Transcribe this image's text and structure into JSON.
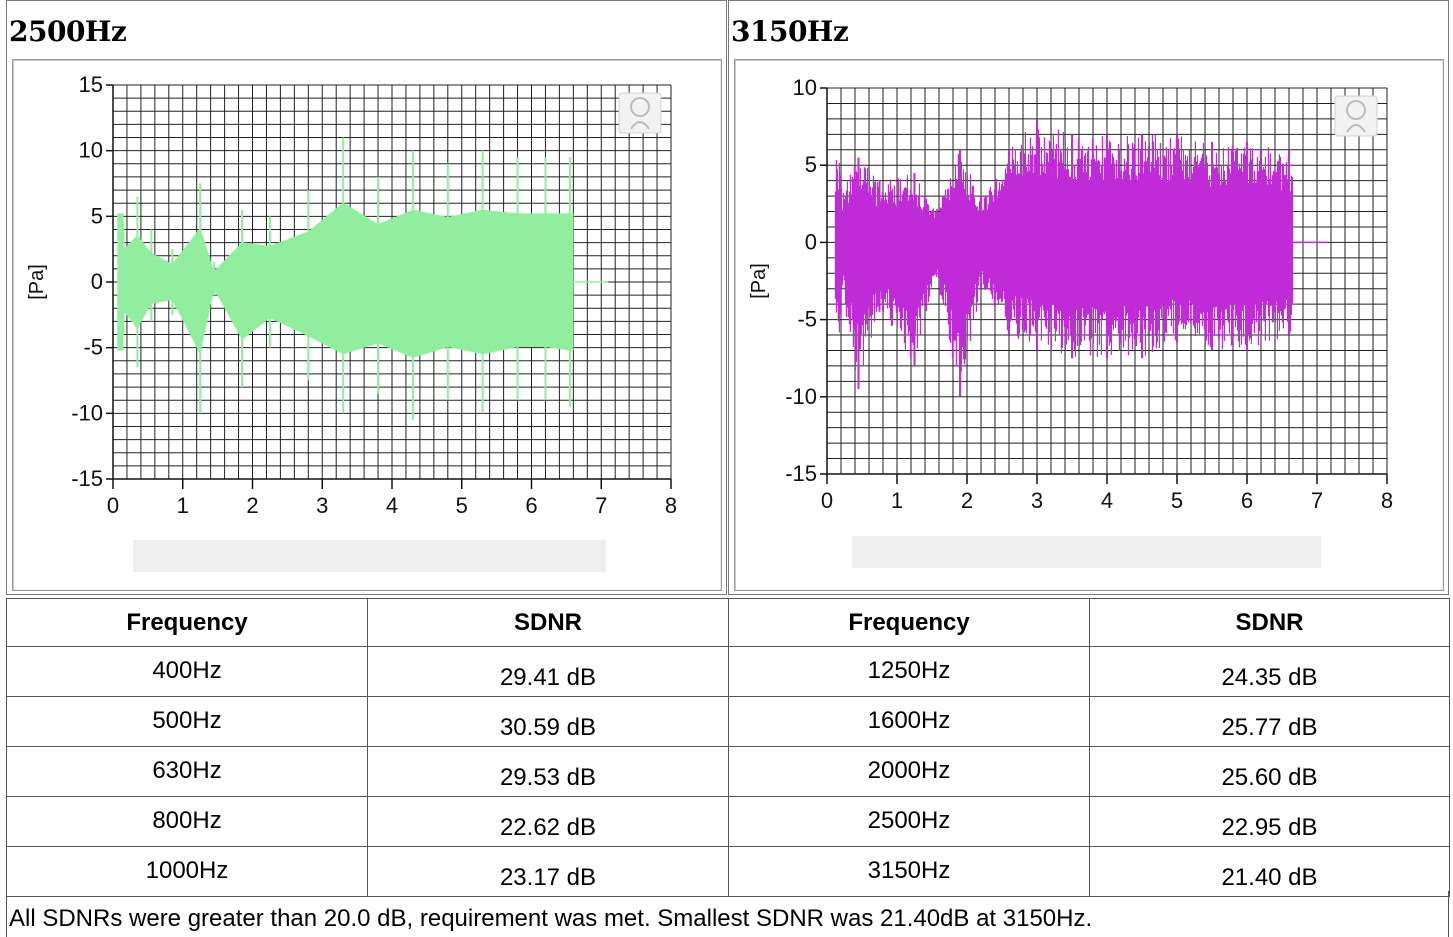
{
  "charts_meta": {
    "y_axis_label": "[Pa]"
  },
  "chart_data": [
    {
      "type": "line",
      "title": "2500Hz",
      "ylabel": "[Pa]",
      "xlabel": "",
      "xlim": [
        0,
        8
      ],
      "ylim": [
        -15,
        15
      ],
      "x_ticks": [
        "0",
        "1",
        "2",
        "3",
        "4",
        "5",
        "6",
        "7",
        "8"
      ],
      "y_ticks": [
        "15",
        "10",
        "5",
        "0",
        "-5",
        "-10",
        "-15"
      ],
      "grid": true,
      "color": "#90ee9e",
      "series": [
        {
          "envelope": [
            {
              "x": 0.15,
              "max": 4.5,
              "min": -4.0
            },
            {
              "x": 0.35,
              "max": 6.5,
              "min": -6.5
            },
            {
              "x": 0.55,
              "max": 4.0,
              "min": -3.0
            },
            {
              "x": 0.85,
              "max": 2.5,
              "min": -2.5
            },
            {
              "x": 1.25,
              "max": 7.5,
              "min": -10.0
            },
            {
              "x": 1.45,
              "max": 1.5,
              "min": -1.0
            },
            {
              "x": 1.85,
              "max": 5.5,
              "min": -8.0
            },
            {
              "x": 2.25,
              "max": 5.0,
              "min": -5.0
            },
            {
              "x": 2.8,
              "max": 7.0,
              "min": -7.5
            },
            {
              "x": 3.3,
              "max": 11.0,
              "min": -10.0
            },
            {
              "x": 3.8,
              "max": 8.0,
              "min": -8.5
            },
            {
              "x": 4.3,
              "max": 10.0,
              "min": -10.5
            },
            {
              "x": 4.8,
              "max": 9.0,
              "min": -9.0
            },
            {
              "x": 5.3,
              "max": 10.0,
              "min": -10.0
            },
            {
              "x": 5.8,
              "max": 9.5,
              "min": -9.0
            },
            {
              "x": 6.2,
              "max": 9.5,
              "min": -9.0
            },
            {
              "x": 6.55,
              "max": 9.5,
              "min": -9.5
            }
          ]
        }
      ]
    },
    {
      "type": "line",
      "title": "3150Hz",
      "ylabel": "[Pa]",
      "xlabel": "",
      "xlim": [
        0,
        8
      ],
      "ylim": [
        -15,
        10
      ],
      "x_ticks": [
        "0",
        "1",
        "2",
        "3",
        "4",
        "5",
        "6",
        "7",
        "8"
      ],
      "y_ticks": [
        "10",
        "5",
        "0",
        "-5",
        "-10",
        "-15"
      ],
      "grid": true,
      "color": "#c12bd8",
      "series": [
        {
          "envelope": [
            {
              "x": 0.2,
              "max": 3.5,
              "min": -3.0
            },
            {
              "x": 0.45,
              "max": 5.5,
              "min": -9.5
            },
            {
              "x": 0.75,
              "max": 4.0,
              "min": -4.5
            },
            {
              "x": 1.25,
              "max": 4.5,
              "min": -8.0
            },
            {
              "x": 1.55,
              "max": 2.0,
              "min": -2.0
            },
            {
              "x": 1.9,
              "max": 6.0,
              "min": -10.0
            },
            {
              "x": 2.2,
              "max": 3.0,
              "min": -3.0
            },
            {
              "x": 2.6,
              "max": 6.0,
              "min": -6.0
            },
            {
              "x": 3.0,
              "max": 8.0,
              "min": -7.0
            },
            {
              "x": 3.5,
              "max": 7.0,
              "min": -7.5
            },
            {
              "x": 4.0,
              "max": 7.0,
              "min": -7.5
            },
            {
              "x": 4.5,
              "max": 7.0,
              "min": -7.5
            },
            {
              "x": 5.0,
              "max": 7.0,
              "min": -6.5
            },
            {
              "x": 5.5,
              "max": 6.5,
              "min": -7.0
            },
            {
              "x": 6.0,
              "max": 6.5,
              "min": -7.0
            },
            {
              "x": 6.6,
              "max": 6.0,
              "min": -6.0
            }
          ]
        }
      ]
    },
    {
      "type": "table",
      "columns": [
        "Frequency",
        "SDNR",
        "Frequency",
        "SDNR"
      ],
      "rows": [
        [
          "400Hz",
          "29.41 dB",
          "1250Hz",
          "24.35 dB"
        ],
        [
          "500Hz",
          "30.59 dB",
          "1600Hz",
          "25.77 dB"
        ],
        [
          "630Hz",
          "29.53 dB",
          "2000Hz",
          "25.60 dB"
        ],
        [
          "800Hz",
          "22.62 dB",
          "2500Hz",
          "22.95 dB"
        ],
        [
          "1000Hz",
          "23.17 dB",
          "3150Hz",
          "21.40 dB"
        ]
      ]
    }
  ],
  "summary": "All SDNRs were greater than 20.0 dB, requirement was met. Smallest SDNR was 21.40dB at 3150Hz."
}
